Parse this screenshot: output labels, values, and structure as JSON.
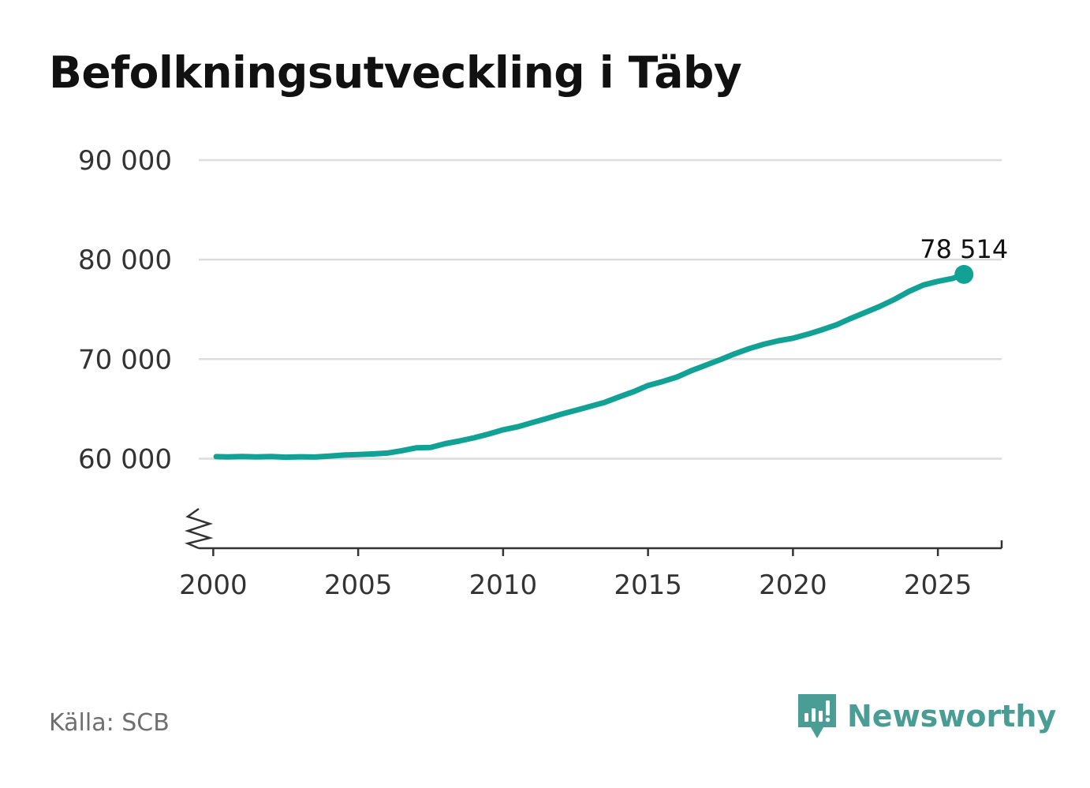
{
  "title": "Befolkningsutveckling i Täby",
  "source": "Källa: SCB",
  "brand": {
    "name": "Newsworthy",
    "icon": "newsworthy-logo-icon",
    "color": "#4a9d94"
  },
  "colors": {
    "line": "#12a295",
    "grid": "#dcdcdc",
    "axis": "#333333",
    "text": "#333333"
  },
  "chart_data": {
    "type": "line",
    "title": "Befolkningsutveckling i Täby",
    "xlabel": "",
    "ylabel": "",
    "xlim": [
      1999.5,
      2027.2
    ],
    "ylim": [
      51000,
      90000
    ],
    "grid": true,
    "axis_break": true,
    "y_ticks": [
      60000,
      70000,
      80000,
      90000
    ],
    "y_tick_labels": [
      "60 000",
      "70 000",
      "80 000",
      "90 000"
    ],
    "x_ticks": [
      2000,
      2005,
      2010,
      2015,
      2020,
      2025
    ],
    "x_tick_labels": [
      "2000",
      "2005",
      "2010",
      "2015",
      "2020",
      "2025"
    ],
    "series": [
      {
        "values": [
          [
            2000.1,
            60200
          ],
          [
            2000.5,
            60180
          ],
          [
            2001.0,
            60210
          ],
          [
            2001.5,
            60170
          ],
          [
            2002.0,
            60220
          ],
          [
            2002.5,
            60150
          ],
          [
            2003.0,
            60190
          ],
          [
            2003.5,
            60160
          ],
          [
            2004.0,
            60250
          ],
          [
            2004.5,
            60360
          ],
          [
            2005.0,
            60410
          ],
          [
            2005.5,
            60470
          ],
          [
            2006.0,
            60560
          ],
          [
            2006.5,
            60800
          ],
          [
            2007.0,
            61080
          ],
          [
            2007.5,
            61120
          ],
          [
            2008.0,
            61500
          ],
          [
            2008.5,
            61780
          ],
          [
            2009.0,
            62100
          ],
          [
            2009.5,
            62480
          ],
          [
            2010.0,
            62900
          ],
          [
            2010.5,
            63200
          ],
          [
            2011.0,
            63620
          ],
          [
            2011.5,
            64030
          ],
          [
            2012.0,
            64470
          ],
          [
            2012.5,
            64850
          ],
          [
            2013.0,
            65250
          ],
          [
            2013.5,
            65650
          ],
          [
            2014.0,
            66200
          ],
          [
            2014.5,
            66730
          ],
          [
            2015.0,
            67350
          ],
          [
            2015.5,
            67750
          ],
          [
            2016.0,
            68200
          ],
          [
            2016.5,
            68850
          ],
          [
            2017.0,
            69400
          ],
          [
            2017.5,
            69950
          ],
          [
            2018.0,
            70550
          ],
          [
            2018.5,
            71070
          ],
          [
            2019.0,
            71500
          ],
          [
            2019.5,
            71850
          ],
          [
            2020.0,
            72100
          ],
          [
            2020.5,
            72500
          ],
          [
            2021.0,
            72950
          ],
          [
            2021.5,
            73450
          ],
          [
            2022.0,
            74100
          ],
          [
            2022.5,
            74700
          ],
          [
            2023.0,
            75300
          ],
          [
            2023.5,
            76000
          ],
          [
            2024.0,
            76800
          ],
          [
            2024.5,
            77450
          ],
          [
            2025.0,
            77820
          ],
          [
            2025.5,
            78100
          ],
          [
            2025.9,
            78514
          ]
        ],
        "color": "#12a295"
      }
    ],
    "last_value": {
      "x": 2025.9,
      "y": 78514,
      "label": "78 514"
    }
  }
}
